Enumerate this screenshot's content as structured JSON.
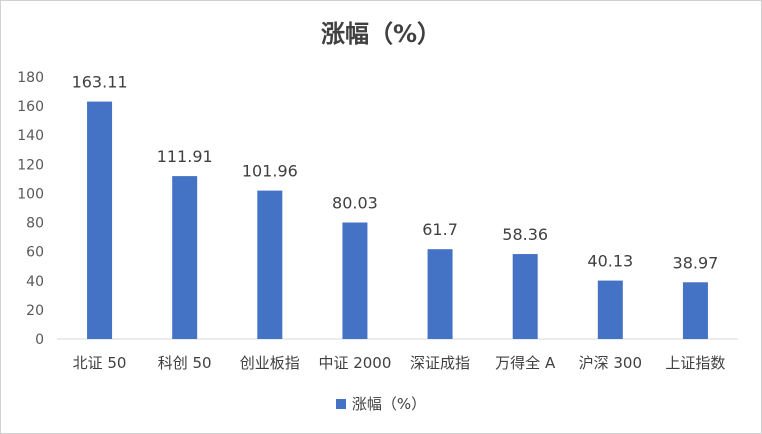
{
  "chart_data": {
    "type": "bar",
    "title": "涨幅（%）",
    "categories": [
      "北证 50",
      "科创 50",
      "创业板指",
      "中证 2000",
      "深证成指",
      "万得全 A",
      "沪深 300",
      "上证指数"
    ],
    "series": [
      {
        "name": "涨幅（%）",
        "values": [
          163.11,
          111.91,
          101.96,
          80.03,
          61.7,
          58.36,
          40.13,
          38.97
        ],
        "color": "#4472C4"
      }
    ],
    "data_labels": [
      "163.11",
      "111.91",
      "101.96",
      "80.03",
      "61.7",
      "58.36",
      "40.13",
      "38.97"
    ],
    "ylim": [
      0,
      180
    ],
    "y_ticks": [
      0,
      20,
      40,
      60,
      80,
      100,
      120,
      140,
      160,
      180
    ],
    "grid": false,
    "legend": "bottom",
    "xlabel": "",
    "ylabel": ""
  }
}
